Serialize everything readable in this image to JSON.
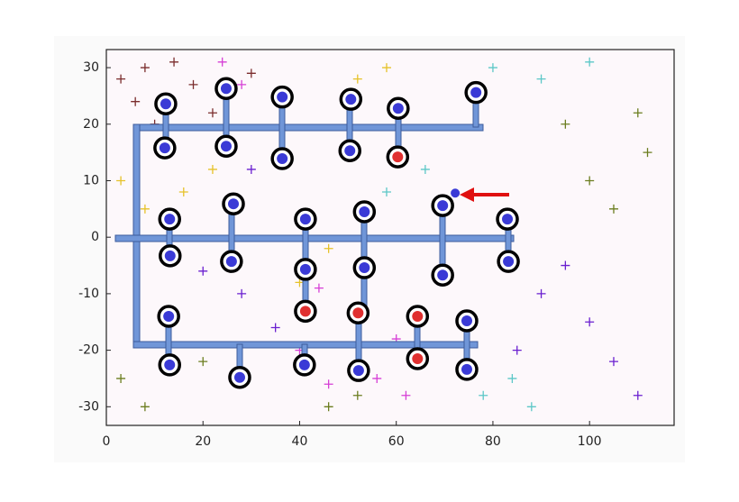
{
  "chart_data": {
    "type": "scatter",
    "xlim": [
      0,
      117.5
    ],
    "ylim": [
      -33.3,
      33.2
    ],
    "xticks": [
      0,
      20,
      40,
      60,
      80,
      100
    ],
    "yticks": [
      -30,
      -20,
      -10,
      0,
      10,
      20,
      30
    ],
    "series": [
      {
        "color": "#7b2d2d",
        "marker": "cross",
        "x": [
          3,
          8,
          14,
          6,
          18,
          10,
          30,
          22
        ],
        "y": [
          28,
          30,
          31,
          24,
          27,
          20,
          29,
          22
        ]
      },
      {
        "color": "#d63fd6",
        "marker": "cross",
        "x": [
          24,
          28,
          40,
          46,
          60,
          62,
          56,
          44
        ],
        "y": [
          31,
          27,
          -20,
          -26,
          -18,
          -28,
          -25,
          -9
        ]
      },
      {
        "color": "#6a1fd0",
        "marker": "cross",
        "x": [
          20,
          28,
          30,
          35,
          90,
          100,
          110,
          95,
          85,
          105
        ],
        "y": [
          -6,
          -10,
          12,
          -16,
          -10,
          -15,
          -28,
          -5,
          -20,
          -22
        ]
      },
      {
        "color": "#e6c229",
        "marker": "cross",
        "x": [
          3,
          8,
          16,
          22,
          40,
          46,
          52,
          58
        ],
        "y": [
          10,
          5,
          8,
          12,
          -8,
          -2,
          28,
          30
        ]
      },
      {
        "color": "#5cc7c7",
        "marker": "cross",
        "x": [
          80,
          90,
          100,
          58,
          66,
          78,
          84,
          88
        ],
        "y": [
          30,
          28,
          31,
          8,
          12,
          -28,
          -25,
          -30
        ]
      },
      {
        "color": "#6b7d1f",
        "marker": "cross",
        "x": [
          95,
          100,
          110,
          105,
          3,
          8,
          20,
          46,
          52,
          112
        ],
        "y": [
          20,
          10,
          22,
          5,
          -25,
          -30,
          -22,
          -30,
          -28,
          15
        ]
      },
      {
        "color": "#3a3ad6",
        "marker": "ringed",
        "x": [
          12.3,
          24.8,
          36.4,
          50.6,
          60.4,
          76.5,
          12.1,
          24.8,
          36.4,
          50.4,
          69.6,
          26.3,
          13.1,
          41.2,
          53.4,
          83.0,
          13.2,
          25.9,
          41.2,
          53.4,
          69.6,
          83.2,
          12.9,
          74.6,
          13.1,
          27.6,
          41.0,
          52.2,
          74.6
        ],
        "y": [
          23.6,
          26.3,
          24.8,
          24.4,
          22.8,
          25.6,
          15.8,
          16.1,
          13.9,
          15.3,
          5.6,
          5.9,
          3.2,
          3.2,
          4.5,
          3.2,
          -3.3,
          -4.3,
          -5.7,
          -5.4,
          -6.7,
          -4.3,
          -14.0,
          -14.8,
          -22.6,
          -24.8,
          -22.6,
          -23.6,
          -23.4
        ]
      },
      {
        "color": "#e03030",
        "marker": "ringed",
        "x": [
          60.3,
          41.2,
          52.1,
          64.4,
          64.4
        ],
        "y": [
          14.2,
          -13.1,
          -13.4,
          -14.0,
          -21.5
        ]
      },
      {
        "color": "#3a3ad6",
        "marker": "dot",
        "x": [
          72.2
        ],
        "y": [
          7.8
        ]
      }
    ]
  }
}
